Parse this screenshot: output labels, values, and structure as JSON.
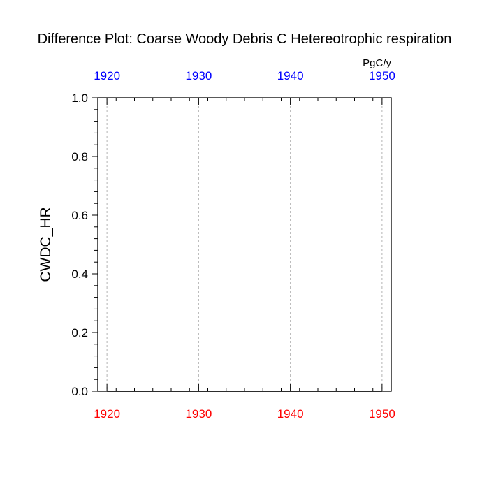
{
  "chart_data": {
    "type": "line",
    "title": "Difference Plot: Coarse Woody Debris C Hetereotrophic respiration",
    "ylabel": "CWDC_HR",
    "units": "PgC/y",
    "xlim": [
      1919,
      1951
    ],
    "ylim": [
      0,
      1
    ],
    "x_ticks": [
      1920,
      1930,
      1940,
      1950
    ],
    "x_tick_labels": [
      "1920",
      "1930",
      "1940",
      "1950"
    ],
    "y_ticks": [
      0,
      0.2,
      0.4,
      0.6,
      0.8,
      1.0
    ],
    "y_tick_labels": [
      "0.0",
      "0.2",
      "0.4",
      "0.6",
      "0.8",
      "1.0"
    ],
    "top_axis_color": "#0000ff",
    "bottom_axis_color": "#ff0000",
    "vertical_gridlines": true,
    "series": [
      {
        "color": "#000000",
        "x": [
          1920,
          1925,
          1930,
          1935,
          1940,
          1945,
          1950
        ],
        "values": [
          0,
          0,
          0,
          0,
          0,
          0,
          0
        ]
      }
    ]
  }
}
